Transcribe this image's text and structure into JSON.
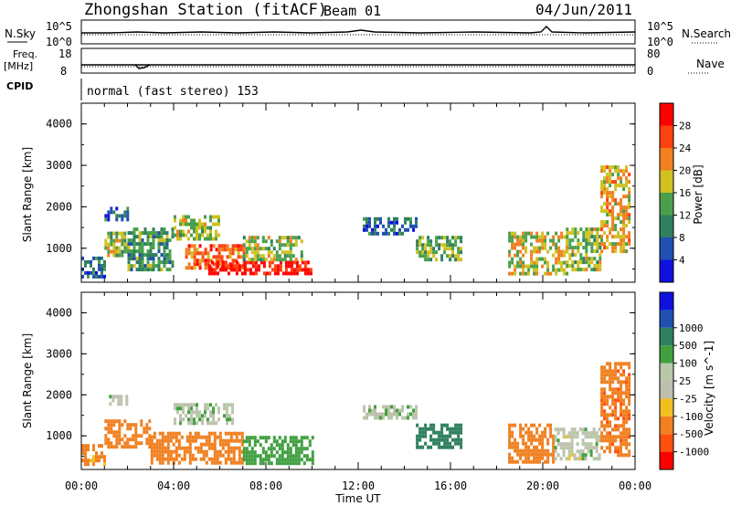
{
  "header": {
    "station": "Zhongshan Station (fitACF)",
    "beam": "Beam 01",
    "date": "04/Jun/2011"
  },
  "strips": {
    "nsky_label": "N.Sky",
    "nsky_ticks": [
      "10^5",
      "10^0"
    ],
    "nsearch_label": "N.Search",
    "nsearch_ticks": [
      "10^5",
      "10^0"
    ],
    "freq_label": "Freq.",
    "freq_unit": "[MHz]",
    "freq_ticks": [
      "18",
      "8"
    ],
    "nave_label": "Nave",
    "nave_ticks": [
      "80",
      "0"
    ],
    "cpid_label": "CPID",
    "cpid_text": "normal (fast stereo) 153"
  },
  "x_axis": {
    "label": "Time UT",
    "ticks": [
      "00:00",
      "04:00",
      "08:00",
      "12:00",
      "16:00",
      "20:00",
      "00:00"
    ]
  },
  "colors": {
    "power": [
      "#1010e0",
      "#2050b0",
      "#2f7f5f",
      "#4aa04a",
      "#d0c020",
      "#f08020",
      "#ff4010",
      "#ff0000"
    ],
    "velocity": [
      "#ff0000",
      "#ff5010",
      "#f08020",
      "#f0c020",
      "#bfbfaf",
      "#b8c8a8",
      "#40a040",
      "#2f7f5f",
      "#2050b0",
      "#1010e0"
    ]
  },
  "chart_data": [
    {
      "type": "heatmap",
      "title": "Power",
      "ylabel": "Slant Range [km]",
      "colorbar_label": "Power [dB]",
      "colorbar_ticks": [
        "28",
        "24",
        "20",
        "16",
        "12",
        "8",
        "4"
      ],
      "y_ticks": [
        "4000",
        "3000",
        "2000",
        "1000"
      ],
      "xlim": [
        0,
        24
      ],
      "ylim": [
        180,
        4500
      ],
      "regions": [
        {
          "x": [
            0.0,
            1.0
          ],
          "y": [
            300,
            800
          ],
          "value": 8
        },
        {
          "x": [
            1.0,
            2.0
          ],
          "y": [
            800,
            1400
          ],
          "value": 16
        },
        {
          "x": [
            1.0,
            2.0
          ],
          "y": [
            1700,
            2000
          ],
          "value": 8
        },
        {
          "x": [
            2.0,
            4.0
          ],
          "y": [
            500,
            1500
          ],
          "value": 12
        },
        {
          "x": [
            4.0,
            6.0
          ],
          "y": [
            1200,
            1800
          ],
          "value": 16
        },
        {
          "x": [
            4.5,
            7.0
          ],
          "y": [
            500,
            1100
          ],
          "value": 24
        },
        {
          "x": [
            5.5,
            10.0
          ],
          "y": [
            350,
            700
          ],
          "value": 30
        },
        {
          "x": [
            7.0,
            9.5
          ],
          "y": [
            700,
            1300
          ],
          "value": 16
        },
        {
          "x": [
            12.2,
            14.5
          ],
          "y": [
            1350,
            1750
          ],
          "value": 8
        },
        {
          "x": [
            14.5,
            16.5
          ],
          "y": [
            700,
            1300
          ],
          "value": 14
        },
        {
          "x": [
            18.5,
            21.0
          ],
          "y": [
            400,
            1400
          ],
          "value": 18
        },
        {
          "x": [
            21.0,
            22.5
          ],
          "y": [
            500,
            1500
          ],
          "value": 16
        },
        {
          "x": [
            22.5,
            23.8
          ],
          "y": [
            900,
            3000
          ],
          "value": 20
        }
      ]
    },
    {
      "type": "heatmap",
      "title": "Velocity",
      "ylabel": "Slant Range [km]",
      "colorbar_label": "Velocity [m s^-1]",
      "colorbar_ticks": [
        "1000",
        "500",
        "100",
        "25",
        "-25",
        "-100",
        "-500",
        "-1000"
      ],
      "y_ticks": [
        "4000",
        "3000",
        "2000",
        "1000"
      ],
      "xlim": [
        0,
        24
      ],
      "ylim": [
        180,
        4500
      ],
      "regions": [
        {
          "x": [
            0.0,
            1.0
          ],
          "y": [
            300,
            800
          ],
          "value": -150
        },
        {
          "x": [
            1.0,
            3.0
          ],
          "y": [
            700,
            1400
          ],
          "value": -200
        },
        {
          "x": [
            1.2,
            2.0
          ],
          "y": [
            1800,
            2000
          ],
          "value": 0
        },
        {
          "x": [
            3.0,
            7.0
          ],
          "y": [
            300,
            1100
          ],
          "value": -180
        },
        {
          "x": [
            4.0,
            6.5
          ],
          "y": [
            1300,
            1800
          ],
          "value": 10
        },
        {
          "x": [
            7.0,
            10.0
          ],
          "y": [
            300,
            1000
          ],
          "value": 60
        },
        {
          "x": [
            12.2,
            14.5
          ],
          "y": [
            1400,
            1750
          ],
          "value": 10
        },
        {
          "x": [
            14.5,
            16.5
          ],
          "y": [
            700,
            1300
          ],
          "value": 300
        },
        {
          "x": [
            18.5,
            20.5
          ],
          "y": [
            400,
            1300
          ],
          "value": -300
        },
        {
          "x": [
            20.5,
            22.5
          ],
          "y": [
            400,
            1200
          ],
          "value": 0
        },
        {
          "x": [
            22.5,
            23.8
          ],
          "y": [
            500,
            2800
          ],
          "value": -400
        }
      ]
    }
  ]
}
